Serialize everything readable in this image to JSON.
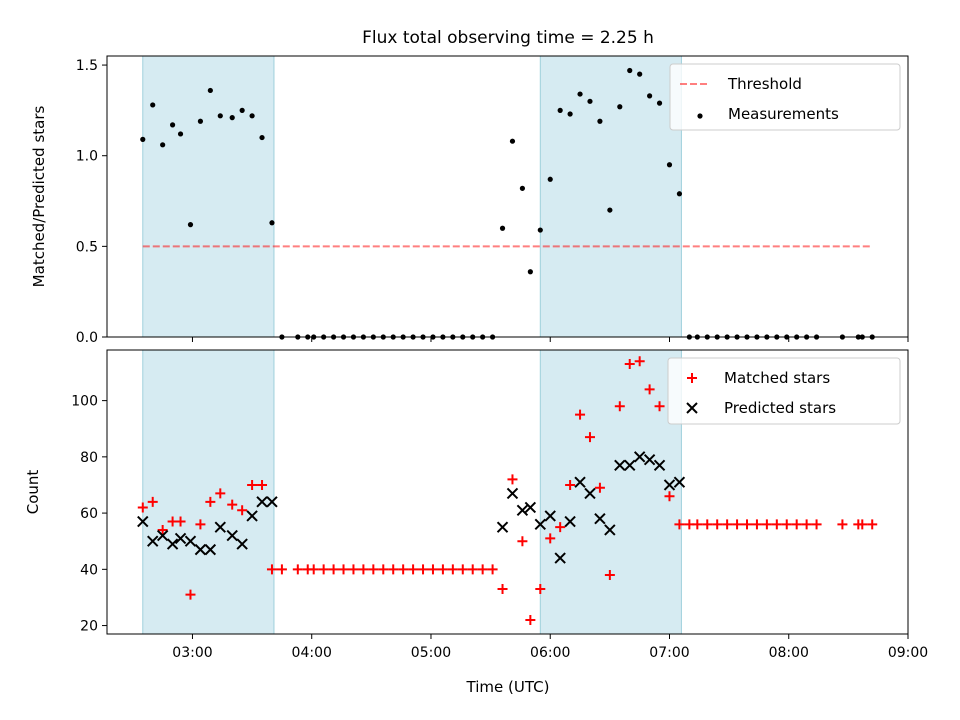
{
  "figure": {
    "title": "Flux total observing time = 2.25 h",
    "xlabel": "Time (UTC)",
    "xticks": [
      "03:00",
      "04:00",
      "05:00",
      "06:00",
      "07:00",
      "08:00",
      "09:00"
    ]
  },
  "colors": {
    "shade": "#add8e6",
    "threshold": "#ff0000",
    "matched": "#ff0000",
    "predicted": "#000000",
    "measurement": "#000000"
  },
  "chart_data": [
    {
      "type": "scatter",
      "panel": "top",
      "ylabel": "Matched/Predicted stars",
      "xlim": [
        "02:17",
        "09:00"
      ],
      "ylim": [
        0,
        1.55
      ],
      "yticks": [
        "0.0",
        "0.5",
        "1.0",
        "1.5"
      ],
      "legend": {
        "placement": "upper right",
        "entries": [
          "Threshold",
          "Measurements"
        ]
      },
      "shaded_intervals": [
        [
          "02:35",
          "03:41"
        ],
        [
          "05:55",
          "07:06"
        ]
      ],
      "threshold": {
        "name": "Threshold",
        "y": 0.5,
        "x": [
          "02:35",
          "08:42"
        ]
      },
      "series": [
        {
          "name": "Measurements",
          "points": [
            [
              "02:35",
              1.09
            ],
            [
              "02:40",
              1.28
            ],
            [
              "02:45",
              1.06
            ],
            [
              "02:50",
              1.17
            ],
            [
              "02:54",
              1.12
            ],
            [
              "02:59",
              0.62
            ],
            [
              "03:04",
              1.19
            ],
            [
              "03:09",
              1.36
            ],
            [
              "03:14",
              1.22
            ],
            [
              "03:20",
              1.21
            ],
            [
              "03:25",
              1.25
            ],
            [
              "03:30",
              1.22
            ],
            [
              "03:35",
              1.1
            ],
            [
              "03:40",
              0.63
            ],
            [
              "03:45",
              0.0
            ],
            [
              "03:53",
              0.0
            ],
            [
              "03:58",
              0.0
            ],
            [
              "04:01",
              0.0
            ],
            [
              "04:06",
              0.0
            ],
            [
              "04:11",
              0.0
            ],
            [
              "04:16",
              0.0
            ],
            [
              "04:21",
              0.0
            ],
            [
              "04:26",
              0.0
            ],
            [
              "04:31",
              0.0
            ],
            [
              "04:36",
              0.0
            ],
            [
              "04:41",
              0.0
            ],
            [
              "04:46",
              0.0
            ],
            [
              "04:51",
              0.0
            ],
            [
              "04:56",
              0.0
            ],
            [
              "05:01",
              0.0
            ],
            [
              "05:06",
              0.0
            ],
            [
              "05:11",
              0.0
            ],
            [
              "05:16",
              0.0
            ],
            [
              "05:21",
              0.0
            ],
            [
              "05:26",
              0.0
            ],
            [
              "05:31",
              0.0
            ],
            [
              "05:36",
              0.6
            ],
            [
              "05:41",
              1.08
            ],
            [
              "05:46",
              0.82
            ],
            [
              "05:50",
              0.36
            ],
            [
              "05:55",
              0.59
            ],
            [
              "06:00",
              0.87
            ],
            [
              "06:05",
              1.25
            ],
            [
              "06:10",
              1.23
            ],
            [
              "06:15",
              1.34
            ],
            [
              "06:20",
              1.3
            ],
            [
              "06:25",
              1.19
            ],
            [
              "06:30",
              0.7
            ],
            [
              "06:35",
              1.27
            ],
            [
              "06:40",
              1.47
            ],
            [
              "06:45",
              1.45
            ],
            [
              "06:50",
              1.33
            ],
            [
              "06:55",
              1.29
            ],
            [
              "07:00",
              0.95
            ],
            [
              "07:05",
              0.79
            ],
            [
              "07:10",
              0.0
            ],
            [
              "07:14",
              0.0
            ],
            [
              "07:19",
              0.0
            ],
            [
              "07:24",
              0.0
            ],
            [
              "07:29",
              0.0
            ],
            [
              "07:34",
              0.0
            ],
            [
              "07:39",
              0.0
            ],
            [
              "07:44",
              0.0
            ],
            [
              "07:49",
              0.0
            ],
            [
              "07:54",
              0.0
            ],
            [
              "07:59",
              0.0
            ],
            [
              "08:04",
              0.0
            ],
            [
              "08:09",
              0.0
            ],
            [
              "08:14",
              0.0
            ],
            [
              "08:27",
              0.0
            ],
            [
              "08:35",
              0.0
            ],
            [
              "08:37",
              0.0
            ],
            [
              "08:42",
              0.0
            ]
          ]
        }
      ]
    },
    {
      "type": "scatter",
      "panel": "bottom",
      "ylabel": "Count",
      "xlim": [
        "02:17",
        "09:00"
      ],
      "ylim": [
        17,
        118
      ],
      "yticks": [
        "20",
        "40",
        "60",
        "80",
        "100"
      ],
      "legend": {
        "placement": "upper right",
        "entries": [
          "Matched stars",
          "Predicted stars"
        ]
      },
      "shaded_intervals": [
        [
          "02:35",
          "03:41"
        ],
        [
          "05:55",
          "07:06"
        ]
      ],
      "series": [
        {
          "name": "Matched stars",
          "marker": "+",
          "points": [
            [
              "02:35",
              62
            ],
            [
              "02:40",
              64
            ],
            [
              "02:45",
              54
            ],
            [
              "02:50",
              57
            ],
            [
              "02:54",
              57
            ],
            [
              "02:59",
              31
            ],
            [
              "03:04",
              56
            ],
            [
              "03:09",
              64
            ],
            [
              "03:14",
              67
            ],
            [
              "03:20",
              63
            ],
            [
              "03:25",
              61
            ],
            [
              "03:30",
              70
            ],
            [
              "03:35",
              70
            ],
            [
              "03:40",
              40
            ],
            [
              "03:45",
              40
            ],
            [
              "03:53",
              40
            ],
            [
              "03:58",
              40
            ],
            [
              "04:01",
              40
            ],
            [
              "04:06",
              40
            ],
            [
              "04:11",
              40
            ],
            [
              "04:16",
              40
            ],
            [
              "04:21",
              40
            ],
            [
              "04:26",
              40
            ],
            [
              "04:31",
              40
            ],
            [
              "04:36",
              40
            ],
            [
              "04:41",
              40
            ],
            [
              "04:46",
              40
            ],
            [
              "04:51",
              40
            ],
            [
              "04:56",
              40
            ],
            [
              "05:01",
              40
            ],
            [
              "05:06",
              40
            ],
            [
              "05:11",
              40
            ],
            [
              "05:16",
              40
            ],
            [
              "05:21",
              40
            ],
            [
              "05:26",
              40
            ],
            [
              "05:31",
              40
            ],
            [
              "05:36",
              33
            ],
            [
              "05:41",
              72
            ],
            [
              "05:46",
              50
            ],
            [
              "05:50",
              22
            ],
            [
              "05:55",
              33
            ],
            [
              "06:00",
              51
            ],
            [
              "06:05",
              55
            ],
            [
              "06:10",
              70
            ],
            [
              "06:15",
              95
            ],
            [
              "06:20",
              87
            ],
            [
              "06:25",
              69
            ],
            [
              "06:30",
              38
            ],
            [
              "06:35",
              98
            ],
            [
              "06:40",
              113
            ],
            [
              "06:45",
              114
            ],
            [
              "06:50",
              104
            ],
            [
              "06:55",
              98
            ],
            [
              "07:00",
              66
            ],
            [
              "07:05",
              56
            ],
            [
              "07:10",
              56
            ],
            [
              "07:14",
              56
            ],
            [
              "07:19",
              56
            ],
            [
              "07:24",
              56
            ],
            [
              "07:29",
              56
            ],
            [
              "07:34",
              56
            ],
            [
              "07:39",
              56
            ],
            [
              "07:44",
              56
            ],
            [
              "07:49",
              56
            ],
            [
              "07:54",
              56
            ],
            [
              "07:59",
              56
            ],
            [
              "08:04",
              56
            ],
            [
              "08:09",
              56
            ],
            [
              "08:14",
              56
            ],
            [
              "08:27",
              56
            ],
            [
              "08:35",
              56
            ],
            [
              "08:37",
              56
            ],
            [
              "08:42",
              56
            ]
          ]
        },
        {
          "name": "Predicted stars",
          "marker": "x",
          "points": [
            [
              "02:35",
              57
            ],
            [
              "02:40",
              50
            ],
            [
              "02:45",
              52
            ],
            [
              "02:50",
              49
            ],
            [
              "02:54",
              51
            ],
            [
              "02:59",
              50
            ],
            [
              "03:04",
              47
            ],
            [
              "03:09",
              47
            ],
            [
              "03:14",
              55
            ],
            [
              "03:20",
              52
            ],
            [
              "03:25",
              49
            ],
            [
              "03:30",
              59
            ],
            [
              "03:35",
              64
            ],
            [
              "03:40",
              64
            ],
            [
              "05:36",
              55
            ],
            [
              "05:41",
              67
            ],
            [
              "05:46",
              61
            ],
            [
              "05:50",
              62
            ],
            [
              "05:55",
              56
            ],
            [
              "06:00",
              59
            ],
            [
              "06:05",
              44
            ],
            [
              "06:10",
              57
            ],
            [
              "06:15",
              71
            ],
            [
              "06:20",
              67
            ],
            [
              "06:25",
              58
            ],
            [
              "06:30",
              54
            ],
            [
              "06:35",
              77
            ],
            [
              "06:40",
              77
            ],
            [
              "06:45",
              80
            ],
            [
              "06:50",
              79
            ],
            [
              "06:55",
              77
            ],
            [
              "07:00",
              70
            ],
            [
              "07:05",
              71
            ]
          ]
        }
      ]
    }
  ]
}
